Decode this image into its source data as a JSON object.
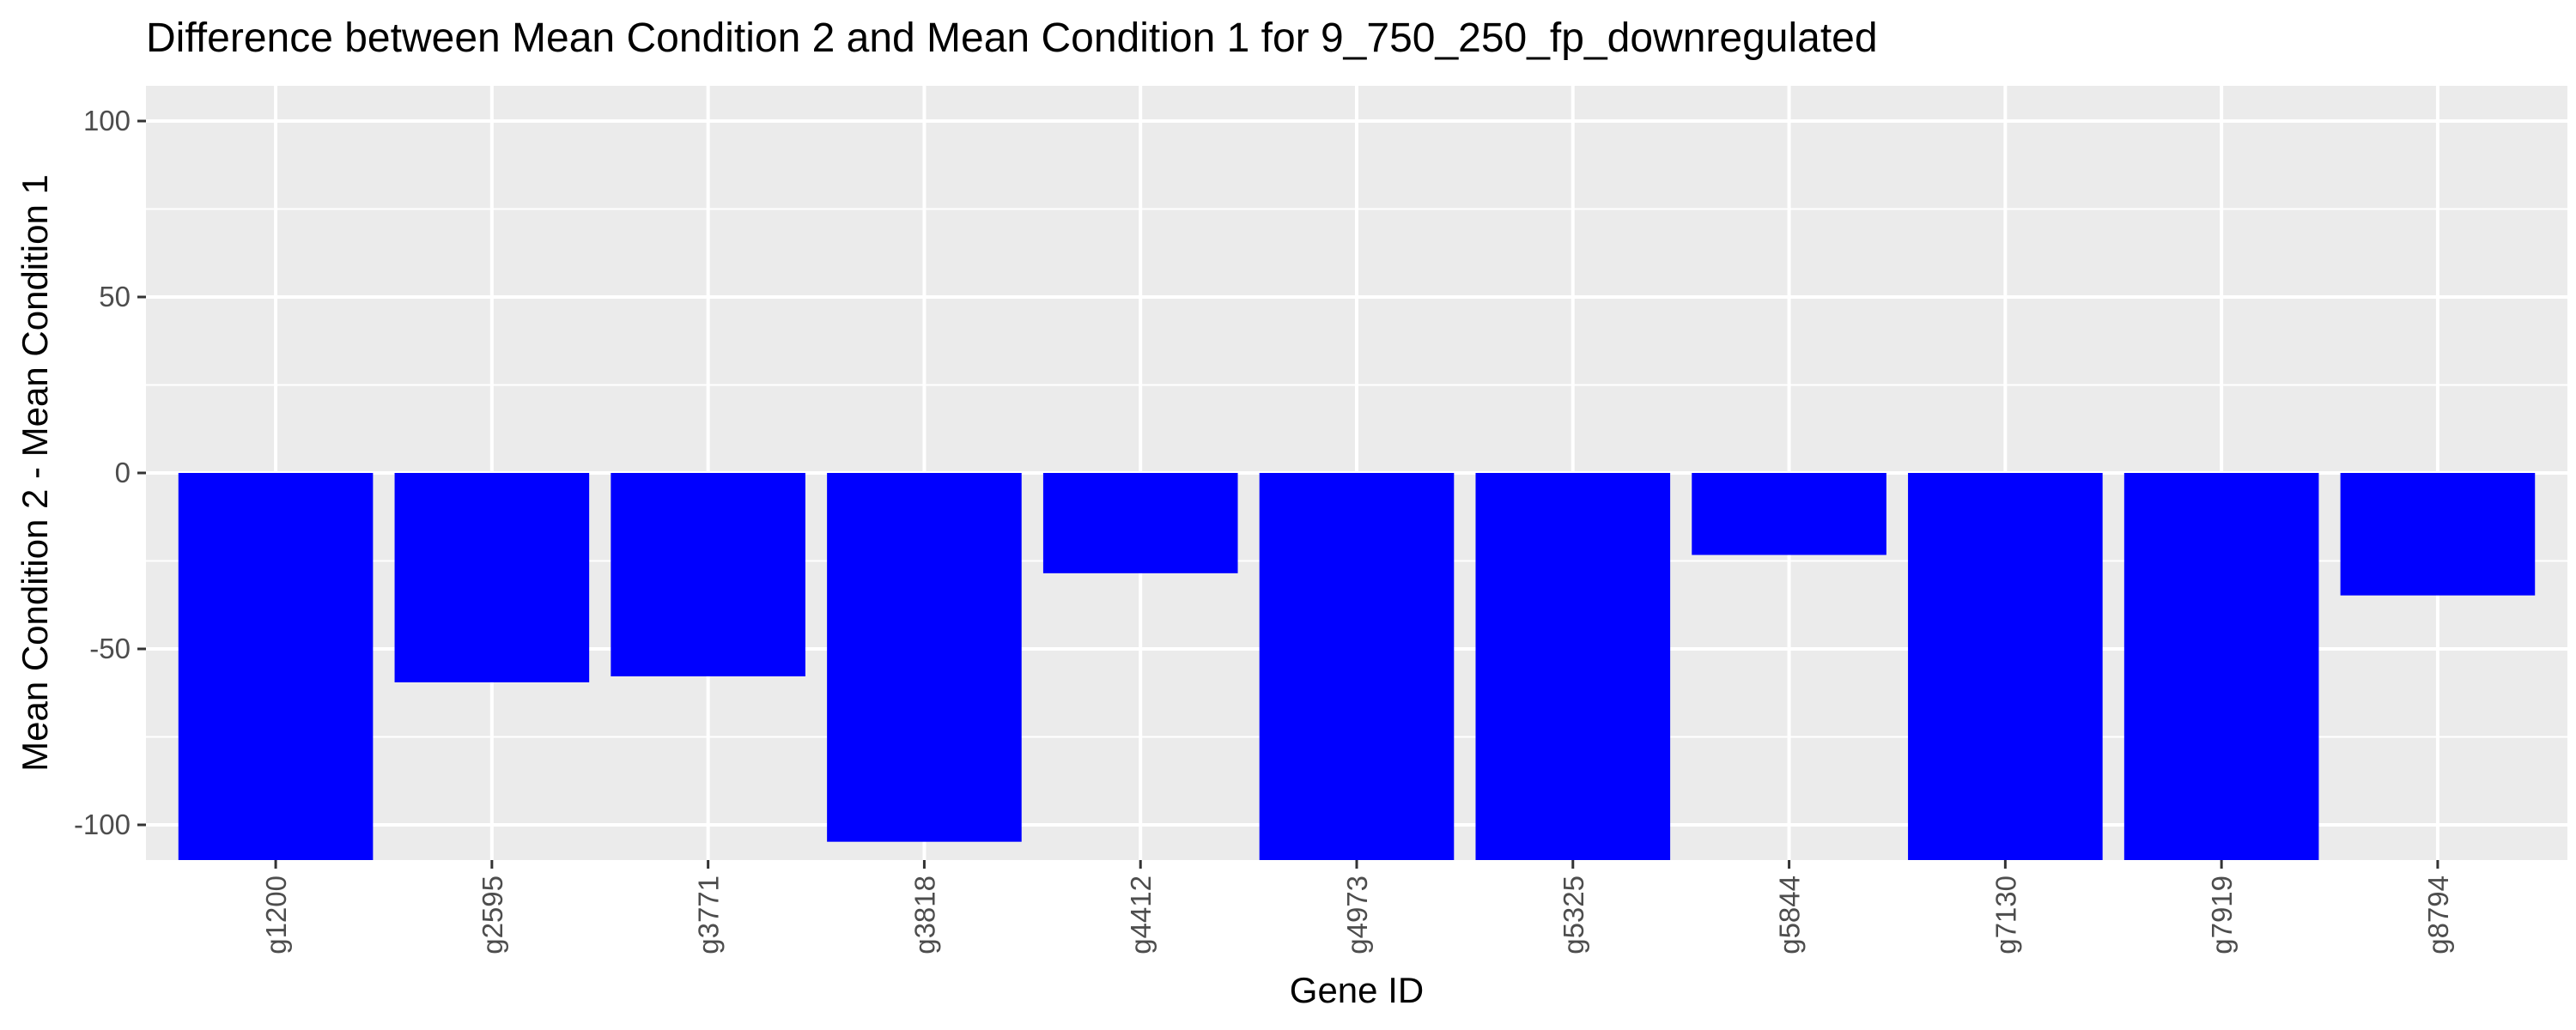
{
  "chart_data": {
    "type": "bar",
    "title": "Difference between Mean Condition 2 and Mean Condition 1 for 9_750_250_fp_downregulated",
    "xlabel": "Gene ID",
    "ylabel": "Mean Condition 2 - Mean Condition 1",
    "categories": [
      "g1200",
      "g2595",
      "g3771",
      "g3818",
      "g4412",
      "g4973",
      "g5325",
      "g5844",
      "g7130",
      "g7919",
      "g8794"
    ],
    "values": [
      -110,
      -59.5,
      -57.8,
      -104.8,
      -28.5,
      -110,
      -110,
      -23.3,
      -110,
      -110,
      -34.8
    ],
    "ylim": [
      -110,
      110
    ],
    "yticks": [
      -100,
      -50,
      0,
      50,
      100
    ],
    "ytick_labels": [
      "-100",
      "-50",
      "0",
      "50",
      "100"
    ],
    "bar_color": "#0000ff",
    "panel_background": "#ebebeb",
    "grid_color": "#ffffff",
    "grid": true,
    "legend": "none"
  }
}
